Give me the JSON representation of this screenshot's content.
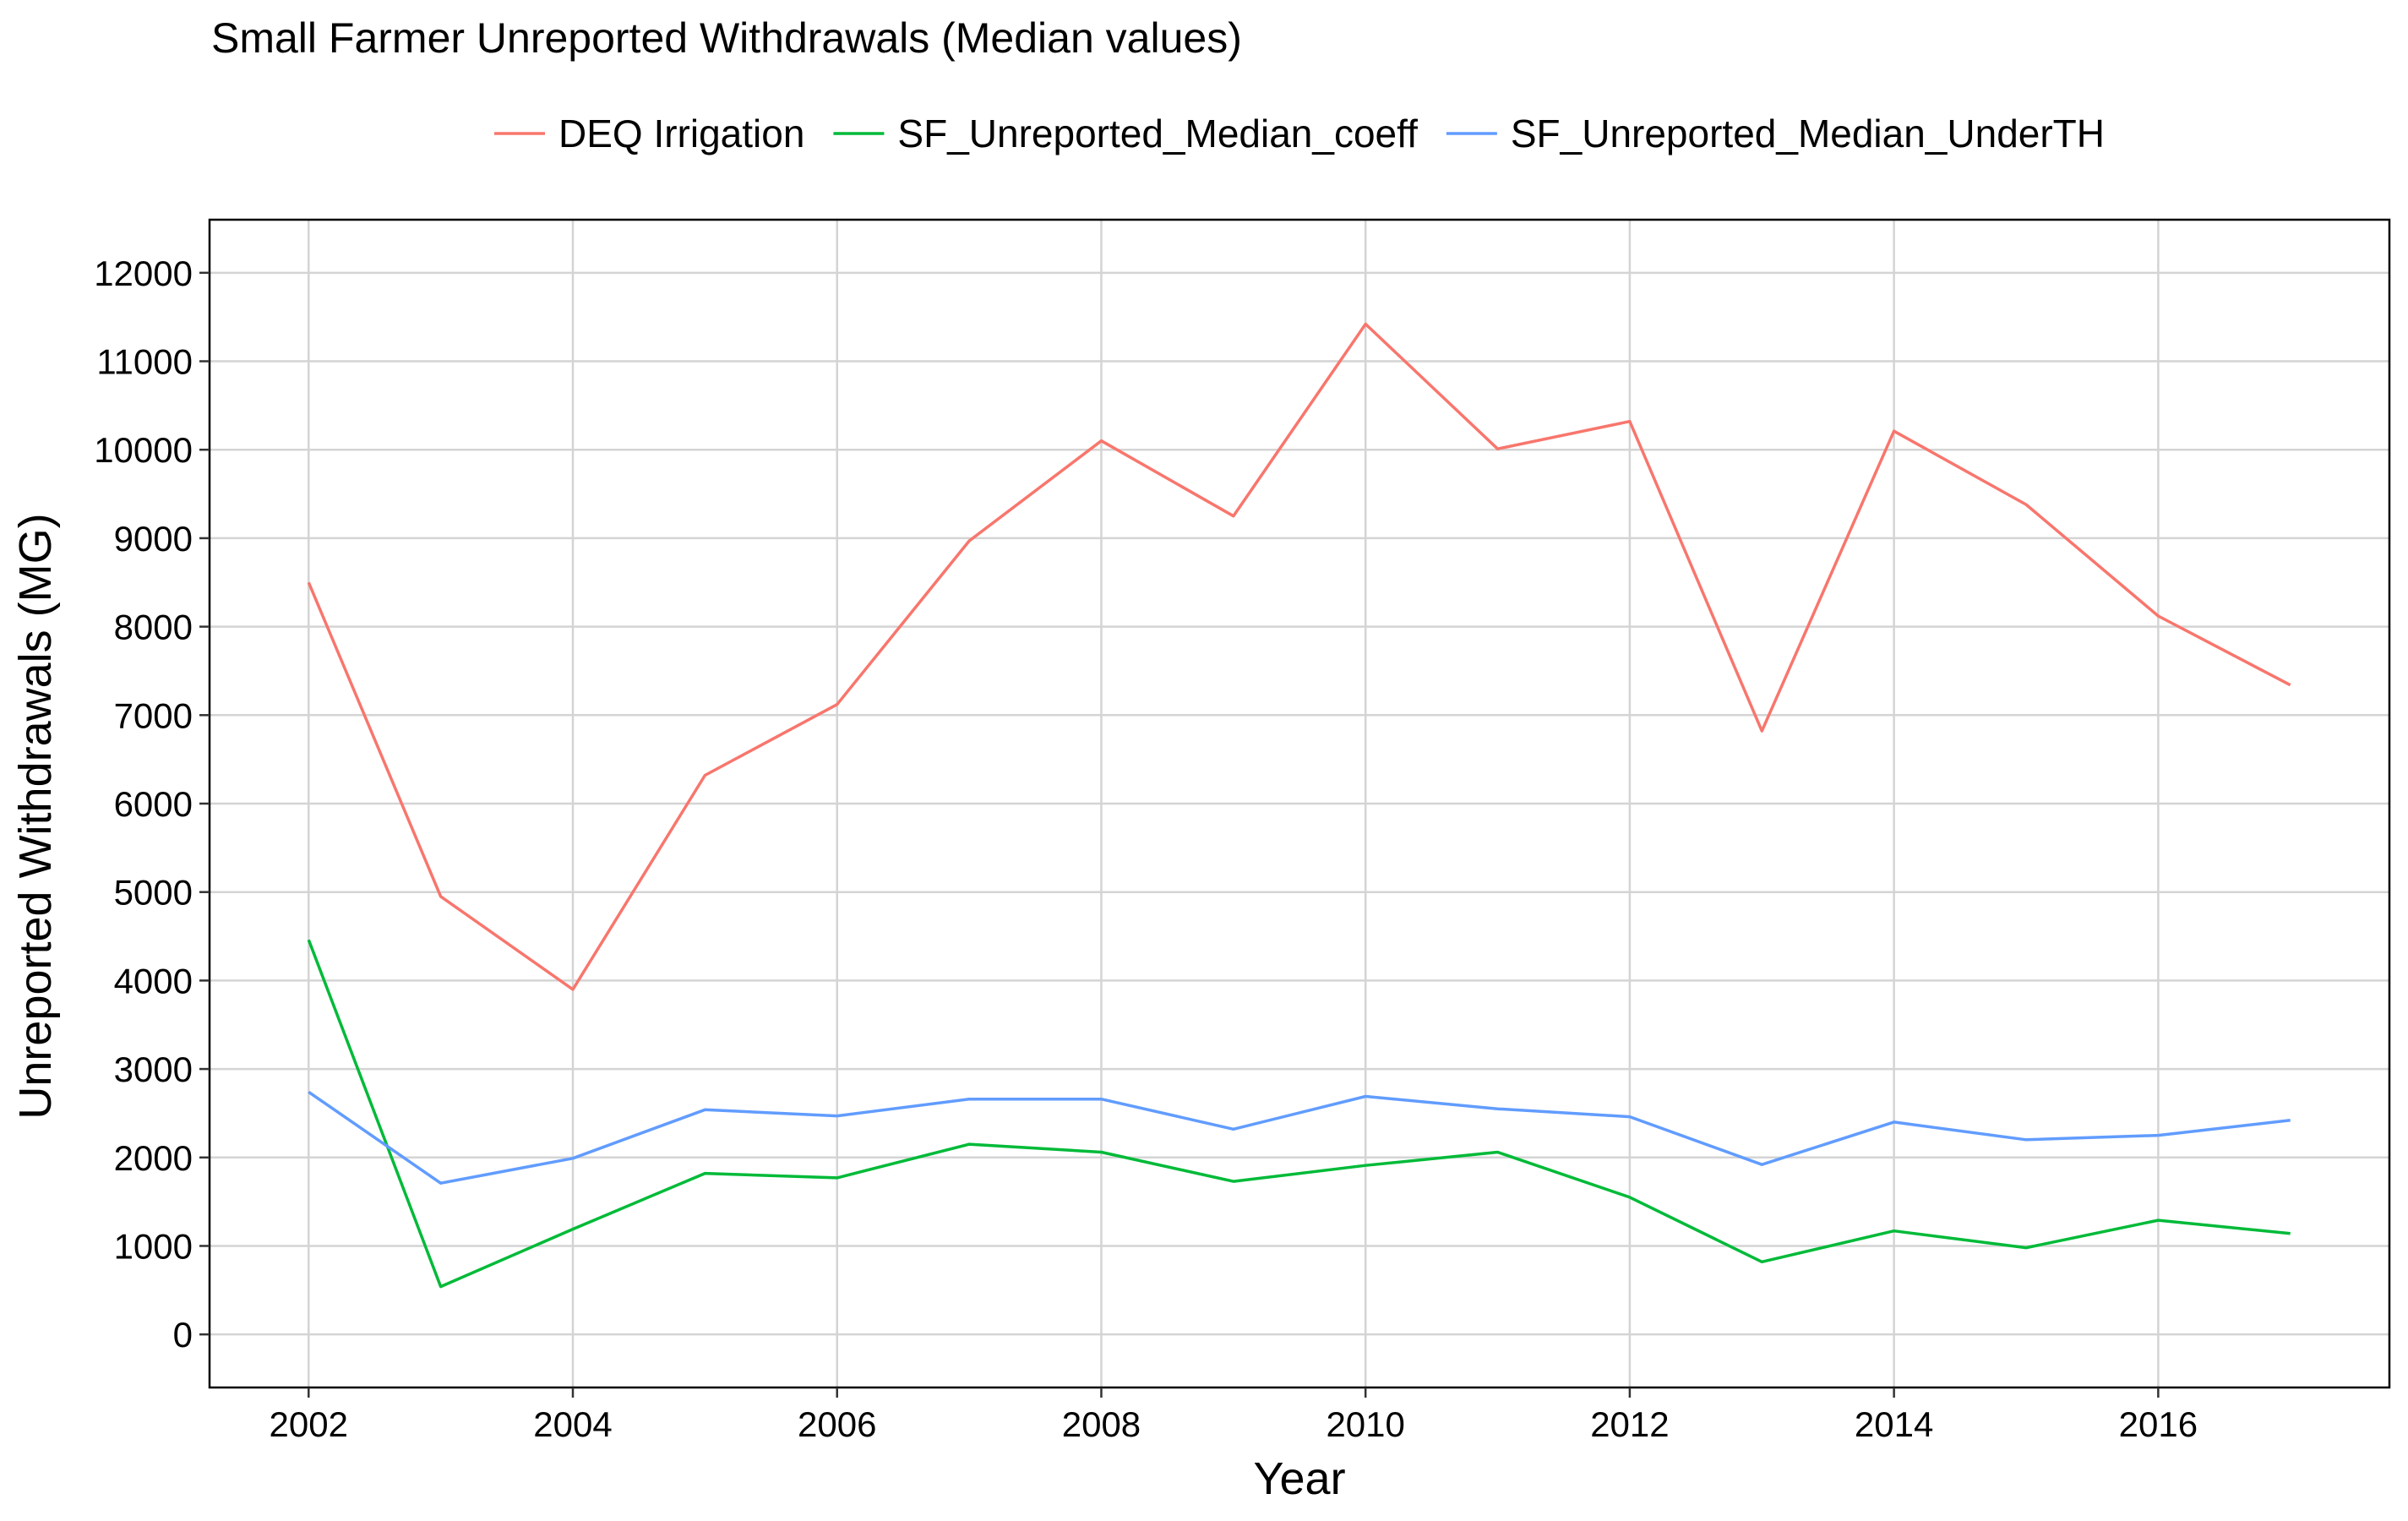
{
  "chart_data": {
    "type": "line",
    "title": "Small Farmer Unreported Withdrawals (Median values)",
    "xlabel": "Year",
    "ylabel": "Unreported Withdrawals (MG)",
    "x": [
      2002,
      2003,
      2004,
      2005,
      2006,
      2007,
      2008,
      2009,
      2010,
      2011,
      2012,
      2013,
      2014,
      2015,
      2016,
      2017
    ],
    "xlim": [
      2001.25,
      2017.75
    ],
    "ylim": [
      -600,
      12600
    ],
    "xticks": [
      2002,
      2004,
      2006,
      2008,
      2010,
      2012,
      2014,
      2016
    ],
    "yticks": [
      0,
      1000,
      2000,
      3000,
      4000,
      5000,
      6000,
      7000,
      8000,
      9000,
      10000,
      11000,
      12000
    ],
    "grid": true,
    "legend_position": "top",
    "series": [
      {
        "name": "DEQ Irrigation",
        "color": "#F8766D",
        "values": [
          8500,
          4950,
          3900,
          6320,
          7120,
          8970,
          10100,
          9250,
          11420,
          10010,
          10320,
          6820,
          10210,
          9380,
          8120,
          7340
        ]
      },
      {
        "name": "SF_Unreported_Median_coeff",
        "color": "#00BA38",
        "values": [
          4460,
          540,
          1190,
          1820,
          1770,
          2150,
          2060,
          1730,
          1910,
          2060,
          1550,
          820,
          1170,
          980,
          1290,
          1140
        ]
      },
      {
        "name": "SF_Unreported_Median_UnderTH",
        "color": "#619CFF",
        "values": [
          2740,
          1710,
          1990,
          2540,
          2470,
          2660,
          2660,
          2320,
          2690,
          2550,
          2460,
          1920,
          2400,
          2200,
          2250,
          2420
        ]
      }
    ]
  }
}
